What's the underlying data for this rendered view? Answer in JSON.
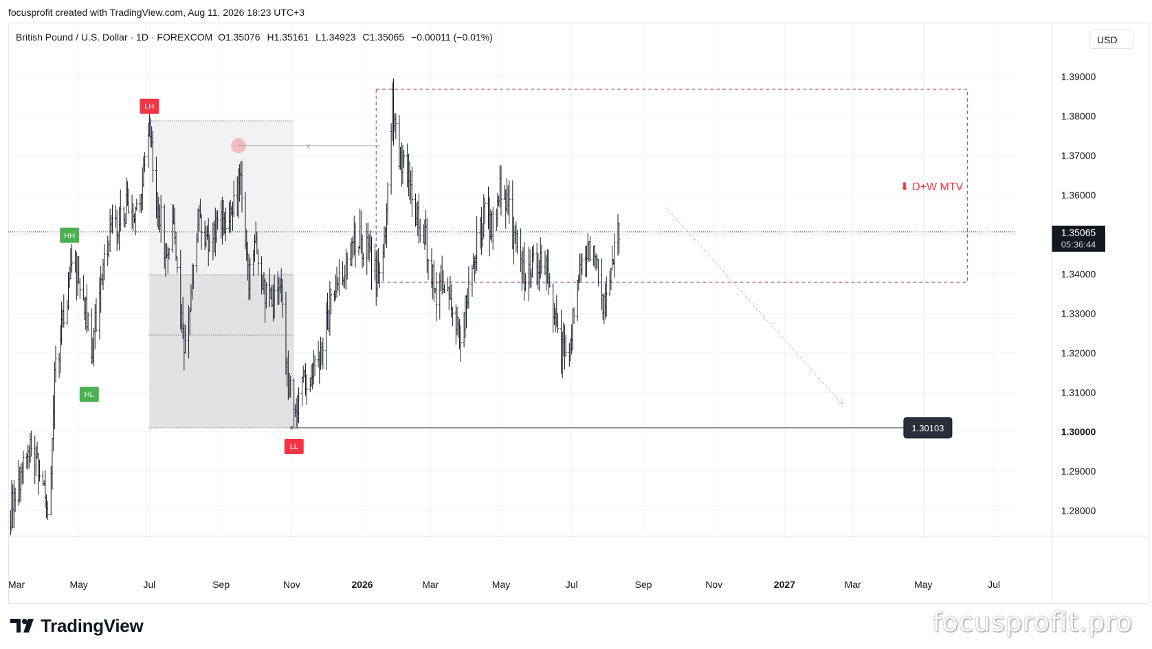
{
  "attribution": "focusprofit created with TradingView.com, Aug 11, 2026 18:23 UTC+3",
  "legend": {
    "symbol": "British Pound / U.S. Dollar · 1D · FOREXCOM",
    "open_label": "O",
    "open": "1.35076",
    "high_label": "H",
    "high": "1.35161",
    "low_label": "L",
    "low": "1.34923",
    "close_label": "C",
    "close": "1.35065",
    "change": "−0.00011 (−0.01%)"
  },
  "currency": "USD",
  "footer": {
    "logo_text": "TradingView",
    "watermark": "focusprofit.pro"
  },
  "colors": {
    "bars": "#131722",
    "swing_high": "#f23645",
    "swing_low": "#4caf50",
    "zone": "#9b3b4a",
    "grid": "#f0f3fa",
    "axis_text": "#131722"
  },
  "chart_data": {
    "type": "ohlc",
    "x_axis": {
      "range": [
        "2025-03-01",
        "2027-07-20"
      ],
      "ticks": [
        {
          "date": "2025-03-01",
          "label": "Mar",
          "bold": false
        },
        {
          "date": "2025-05-01",
          "label": "May",
          "bold": false
        },
        {
          "date": "2025-07-01",
          "label": "Jul",
          "bold": false
        },
        {
          "date": "2025-09-01",
          "label": "Sep",
          "bold": false
        },
        {
          "date": "2025-11-01",
          "label": "Nov",
          "bold": false
        },
        {
          "date": "2026-01-01",
          "label": "2026",
          "bold": true
        },
        {
          "date": "2026-03-01",
          "label": "Mar",
          "bold": false
        },
        {
          "date": "2026-05-01",
          "label": "May",
          "bold": false
        },
        {
          "date": "2026-07-01",
          "label": "Jul",
          "bold": false
        },
        {
          "date": "2026-09-01",
          "label": "Sep",
          "bold": false
        },
        {
          "date": "2026-11-01",
          "label": "Nov",
          "bold": false
        },
        {
          "date": "2027-01-01",
          "label": "2027",
          "bold": true
        },
        {
          "date": "2027-03-01",
          "label": "Mar",
          "bold": false
        },
        {
          "date": "2027-05-01",
          "label": "May",
          "bold": false
        },
        {
          "date": "2027-07-01",
          "label": "Jul",
          "bold": false
        }
      ]
    },
    "y_axis": {
      "range": [
        1.2735,
        1.3955
      ],
      "ticks": [
        "1.39000",
        "1.38000",
        "1.37000",
        "1.36000",
        "1.35000",
        "1.34000",
        "1.33000",
        "1.32000",
        "1.31000",
        "1.30000",
        "1.29000",
        "1.28000"
      ]
    },
    "grid": true,
    "last_price": {
      "value": 1.35065,
      "label": "1.35065",
      "countdown": "05:36:44"
    },
    "price_line": {
      "value": 1.30103,
      "label": "1.30103",
      "from": "2025-11-01",
      "to": "2027-05-15"
    },
    "series": [
      {
        "price_path": [
          [
            "2025-03-01",
            1.277
          ],
          [
            "2025-03-10",
            1.288
          ],
          [
            "2025-03-20",
            1.297
          ],
          [
            "2025-03-31",
            1.29
          ],
          [
            "2025-04-06",
            1.278
          ],
          [
            "2025-04-10",
            1.315
          ],
          [
            "2025-04-20",
            1.332
          ],
          [
            "2025-04-25",
            1.34
          ],
          [
            "2025-05-05",
            1.335
          ],
          [
            "2025-05-12",
            1.32
          ],
          [
            "2025-05-20",
            1.337
          ],
          [
            "2025-05-27",
            1.35
          ],
          [
            "2025-06-05",
            1.352
          ],
          [
            "2025-06-12",
            1.358
          ],
          [
            "2025-06-20",
            1.355
          ],
          [
            "2025-06-26",
            1.365
          ],
          [
            "2025-07-01",
            1.377
          ],
          [
            "2025-07-08",
            1.36
          ],
          [
            "2025-07-15",
            1.345
          ],
          [
            "2025-07-22",
            1.35
          ],
          [
            "2025-07-31",
            1.32
          ],
          [
            "2025-08-07",
            1.337
          ],
          [
            "2025-08-14",
            1.355
          ],
          [
            "2025-08-22",
            1.348
          ],
          [
            "2025-08-29",
            1.352
          ],
          [
            "2025-09-05",
            1.354
          ],
          [
            "2025-09-10",
            1.355
          ],
          [
            "2025-09-17",
            1.365
          ],
          [
            "2025-09-25",
            1.34
          ],
          [
            "2025-10-01",
            1.347
          ],
          [
            "2025-10-08",
            1.337
          ],
          [
            "2025-10-14",
            1.332
          ],
          [
            "2025-10-22",
            1.337
          ],
          [
            "2025-10-28",
            1.315
          ],
          [
            "2025-11-05",
            1.305
          ],
          [
            "2025-11-10",
            1.315
          ],
          [
            "2025-11-17",
            1.313
          ],
          [
            "2025-11-25",
            1.318
          ],
          [
            "2025-12-03",
            1.33
          ],
          [
            "2025-12-11",
            1.336
          ],
          [
            "2025-12-18",
            1.34
          ],
          [
            "2025-12-25",
            1.35
          ],
          [
            "2026-01-06",
            1.345
          ],
          [
            "2026-01-13",
            1.34
          ],
          [
            "2026-01-21",
            1.35
          ],
          [
            "2026-01-27",
            1.383
          ],
          [
            "2026-02-03",
            1.368
          ],
          [
            "2026-02-10",
            1.365
          ],
          [
            "2026-02-17",
            1.355
          ],
          [
            "2026-02-25",
            1.348
          ],
          [
            "2026-03-05",
            1.335
          ],
          [
            "2026-03-12",
            1.34
          ],
          [
            "2026-03-20",
            1.33
          ],
          [
            "2026-03-27",
            1.322
          ],
          [
            "2026-04-03",
            1.335
          ],
          [
            "2026-04-10",
            1.348
          ],
          [
            "2026-04-17",
            1.355
          ],
          [
            "2026-04-24",
            1.352
          ],
          [
            "2026-05-01",
            1.362
          ],
          [
            "2026-05-08",
            1.355
          ],
          [
            "2026-05-15",
            1.345
          ],
          [
            "2026-05-22",
            1.338
          ],
          [
            "2026-05-29",
            1.345
          ],
          [
            "2026-06-05",
            1.343
          ],
          [
            "2026-06-12",
            1.338
          ],
          [
            "2026-06-19",
            1.325
          ],
          [
            "2026-06-26",
            1.318
          ],
          [
            "2026-07-02",
            1.328
          ],
          [
            "2026-07-09",
            1.343
          ],
          [
            "2026-07-16",
            1.348
          ],
          [
            "2026-07-22",
            1.342
          ],
          [
            "2026-07-30",
            1.33
          ],
          [
            "2026-08-04",
            1.345
          ],
          [
            "2026-08-11",
            1.3507
          ]
        ]
      }
    ],
    "annotations": {
      "labels": [
        {
          "text": "LH",
          "date": "2025-07-01",
          "price": 1.3825,
          "kind": "high"
        },
        {
          "text": "HH",
          "date": "2025-04-23",
          "price": 1.3498,
          "kind": "low"
        },
        {
          "text": "HL",
          "date": "2025-05-10",
          "price": 1.3095,
          "kind": "low"
        },
        {
          "text": "LL",
          "date": "2025-11-03",
          "price": 1.2963,
          "kind": "high"
        }
      ],
      "gray_zone": {
        "start": "2025-07-01",
        "end": "2025-11-03",
        "top": 1.3788,
        "bottom": 1.301,
        "mid_line": 1.3398,
        "inner_line": 1.3245
      },
      "sweep_line": {
        "start": "2025-09-16",
        "end": "2026-01-16",
        "price": 1.3725,
        "marker": "x"
      },
      "mtv_zone": {
        "start": "2026-01-13",
        "end": "2027-06-08",
        "top": 1.3868,
        "bottom": 1.3379,
        "label": "⬇ D+W MTV"
      },
      "projection_arrow": {
        "start_date": "2026-09-20",
        "start_price": 1.357,
        "end_date": "2027-02-20",
        "end_price": 1.307
      }
    }
  }
}
